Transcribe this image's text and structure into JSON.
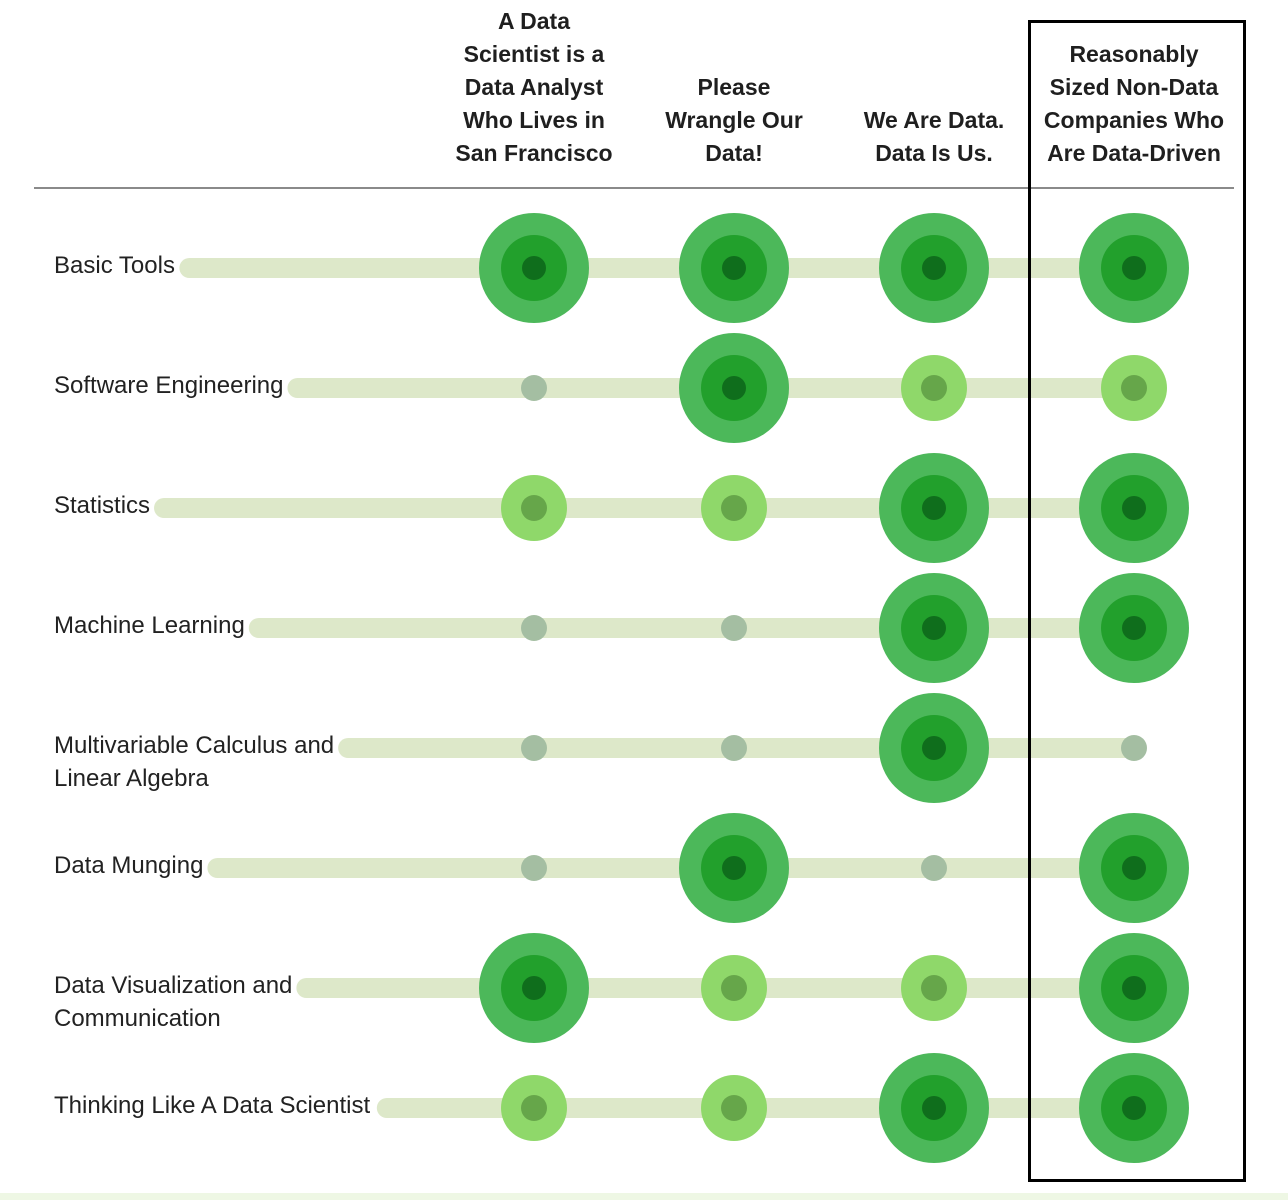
{
  "chart_data": {
    "type": "matrix-bubble",
    "columns": [
      [
        "A Data",
        "Scientist is a",
        "Data Analyst",
        "Who Lives in",
        "San Francisco"
      ],
      [
        "Please",
        "Wrangle Our",
        "Data!"
      ],
      [
        "We Are Data.",
        "Data Is Us."
      ],
      [
        "Reasonably",
        "Sized Non-Data",
        "Companies Who",
        "Are Data-Driven"
      ]
    ],
    "rows": [
      {
        "label": [
          "Basic Tools"
        ],
        "levels": [
          3,
          3,
          3,
          3
        ]
      },
      {
        "label": [
          "Software Engineering"
        ],
        "levels": [
          1,
          3,
          2,
          2
        ]
      },
      {
        "label": [
          "Statistics"
        ],
        "levels": [
          2,
          2,
          3,
          3
        ]
      },
      {
        "label": [
          "Machine Learning"
        ],
        "levels": [
          1,
          1,
          3,
          3
        ]
      },
      {
        "label": [
          "Multivariable Calculus and",
          "Linear Algebra"
        ],
        "levels": [
          1,
          1,
          3,
          1
        ]
      },
      {
        "label": [
          "Data Munging"
        ],
        "levels": [
          1,
          3,
          1,
          3
        ]
      },
      {
        "label": [
          "Data Visualization and",
          "Communication"
        ],
        "levels": [
          3,
          2,
          2,
          3
        ]
      },
      {
        "label": [
          "Thinking Like A Data Scientist"
        ],
        "levels": [
          2,
          2,
          3,
          3
        ]
      }
    ],
    "level_scale": {
      "1": "low",
      "2": "medium",
      "3": "high"
    },
    "highlighted_column": 3,
    "colors": {
      "track": "#dde8c9",
      "low": "#a4bea2",
      "medium_outer": "#8fd86a",
      "medium_inner": "#66a64a",
      "high_outer": "#4cb85a",
      "high_mid": "#22a02c",
      "high_inner": "#0f6e1c",
      "highlight_border": "#000000"
    },
    "grid": false,
    "legend": "none"
  }
}
